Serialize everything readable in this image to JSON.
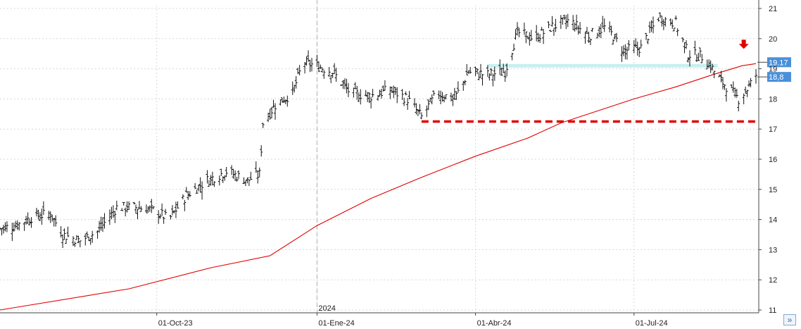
{
  "chart_data": {
    "type": "ohlc",
    "title": "",
    "xlabel": "",
    "ylabel": "",
    "ylim": [
      11,
      21
    ],
    "yticks": [
      11,
      12,
      13,
      14,
      15,
      16,
      17,
      18,
      19,
      20,
      21
    ],
    "xticks": [
      {
        "date": "2023-10-01",
        "label": "01-Oct-23"
      },
      {
        "date": "2024-01-01",
        "label": "01-Ene-24"
      },
      {
        "date": "2024-04-01",
        "label": "01-Abr-24"
      },
      {
        "date": "2024-07-01",
        "label": "01-Jul-24"
      }
    ],
    "year_marker": {
      "date": "2024-01-01",
      "label": "2024"
    },
    "xrange": [
      "2023-07-03",
      "2024-09-09"
    ],
    "close_path": [
      [
        "2023-07-03",
        13.7
      ],
      [
        "2023-07-12",
        13.8
      ],
      [
        "2023-07-22",
        14.1
      ],
      [
        "2023-08-01",
        14.2
      ],
      [
        "2023-08-08",
        13.5
      ],
      [
        "2023-08-18",
        13.3
      ],
      [
        "2023-08-28",
        13.6
      ],
      [
        "2023-09-08",
        14.4
      ],
      [
        "2023-09-20",
        14.4
      ],
      [
        "2023-09-30",
        14.3
      ],
      [
        "2023-10-08",
        14.0
      ],
      [
        "2023-10-18",
        14.8
      ],
      [
        "2023-10-30",
        15.3
      ],
      [
        "2023-11-10",
        15.6
      ],
      [
        "2023-11-22",
        15.3
      ],
      [
        "2023-11-29",
        15.5
      ],
      [
        "2023-12-01",
        17.2
      ],
      [
        "2023-12-08",
        17.8
      ],
      [
        "2023-12-18",
        18.2
      ],
      [
        "2023-12-24",
        19.2
      ],
      [
        "2024-01-01",
        19.1
      ],
      [
        "2024-01-10",
        18.9
      ],
      [
        "2024-01-20",
        18.2
      ],
      [
        "2024-02-01",
        18.1
      ],
      [
        "2024-02-12",
        18.3
      ],
      [
        "2024-02-22",
        18.0
      ],
      [
        "2024-03-01",
        17.4
      ],
      [
        "2024-03-10",
        18.2
      ],
      [
        "2024-03-20",
        18.0
      ],
      [
        "2024-03-28",
        18.9
      ],
      [
        "2024-04-08",
        18.8
      ],
      [
        "2024-04-18",
        18.9
      ],
      [
        "2024-04-25",
        20.2
      ],
      [
        "2024-05-05",
        20.0
      ],
      [
        "2024-05-15",
        20.4
      ],
      [
        "2024-05-25",
        20.6
      ],
      [
        "2024-06-05",
        20.1
      ],
      [
        "2024-06-15",
        20.4
      ],
      [
        "2024-06-25",
        19.6
      ],
      [
        "2024-07-05",
        19.7
      ],
      [
        "2024-07-15",
        20.7
      ],
      [
        "2024-07-25",
        20.5
      ],
      [
        "2024-08-01",
        19.5
      ],
      [
        "2024-08-10",
        19.4
      ],
      [
        "2024-08-20",
        18.6
      ],
      [
        "2024-08-30",
        18.0
      ],
      [
        "2024-09-05",
        18.4
      ],
      [
        "2024-09-09",
        18.8
      ]
    ],
    "moving_average": {
      "color": "#e00000",
      "points": [
        [
          "2023-07-03",
          11.0
        ],
        [
          "2023-09-15",
          11.7
        ],
        [
          "2023-11-01",
          12.4
        ],
        [
          "2023-12-05",
          12.8
        ],
        [
          "2024-01-01",
          13.8
        ],
        [
          "2024-02-01",
          14.7
        ],
        [
          "2024-03-01",
          15.4
        ],
        [
          "2024-04-01",
          16.1
        ],
        [
          "2024-05-01",
          16.7
        ],
        [
          "2024-05-20",
          17.2
        ],
        [
          "2024-06-10",
          17.6
        ],
        [
          "2024-07-01",
          18.0
        ],
        [
          "2024-07-25",
          18.4
        ],
        [
          "2024-08-15",
          18.8
        ],
        [
          "2024-09-01",
          19.1
        ],
        [
          "2024-09-09",
          19.17
        ]
      ]
    },
    "resistance_line": {
      "y": 19.1,
      "from": "2024-04-08",
      "to": "2024-08-18",
      "color": "#c8f0f0"
    },
    "support_line": {
      "y": 17.25,
      "from": "2024-03-01",
      "to": "2024-09-09",
      "color": "#e00000",
      "style": "dashed"
    },
    "arrow": {
      "date": "2024-09-02",
      "y": 19.8,
      "color": "#e00000",
      "direction": "down"
    },
    "price_tags": [
      {
        "label": "19.17",
        "y": 19.17,
        "color": "#4a90d9"
      },
      {
        "label": "18,8",
        "y": 18.8,
        "color": "#4a90d9"
      }
    ]
  },
  "ui": {
    "scroll_button": "»",
    "scroll_button_icon": "double-chevron-icon"
  }
}
